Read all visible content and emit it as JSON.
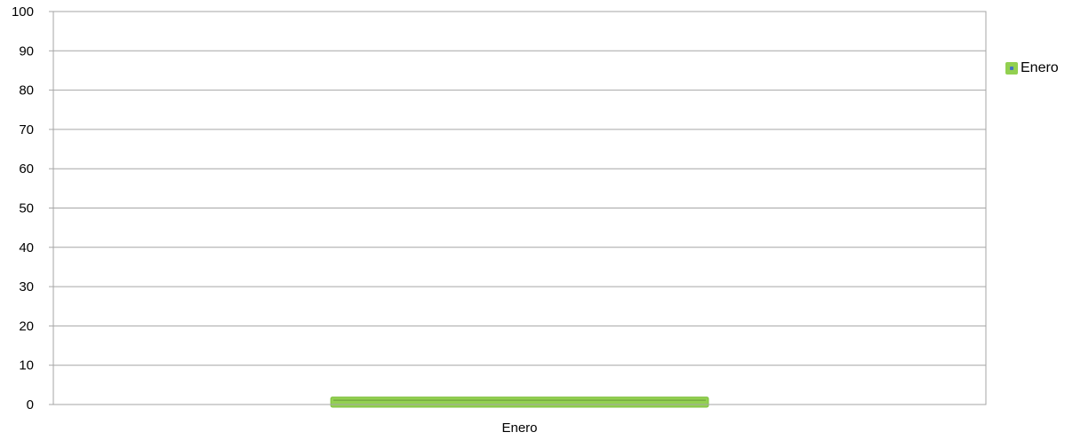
{
  "colors": {
    "series": "#92d050",
    "series_border": "#7fbf3f",
    "marker": "#4472c4",
    "grid": "#a6a6a6"
  },
  "chart_data": {
    "type": "bar",
    "categories": [
      "Enero"
    ],
    "series": [
      {
        "name": "Enero",
        "values": [
          1
        ]
      }
    ],
    "ylim": [
      0,
      100
    ],
    "yticks": [
      "0",
      "10",
      "20",
      "30",
      "40",
      "50",
      "60",
      "70",
      "80",
      "90",
      "100"
    ],
    "grid": true,
    "legend_position": "right"
  }
}
